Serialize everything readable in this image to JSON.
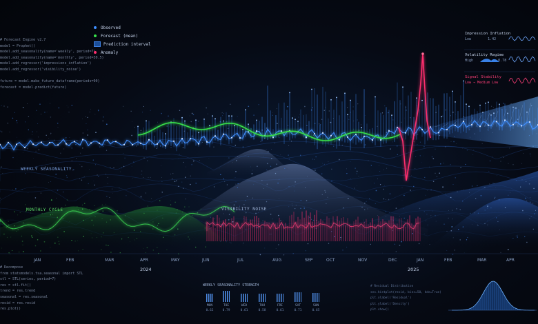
{
  "legend": {
    "observed": "Observed",
    "forecast": "Forecast (mean)",
    "interval": "Prediction interval",
    "anomaly": "Anomaly"
  },
  "colors": {
    "observed": "#3f8fff",
    "forecast": "#38e04a",
    "interval": "#1c4f9a",
    "anomaly": "#ff2f6e",
    "accent": "#6fb3ff"
  },
  "code_top": [
    "# Forecast Engine v2.7",
    "model = Prophet()",
    "model.add_seasonality(name='weekly', period=7)",
    "model.add_seasonality(name='monthly', period=30.5)",
    "model.add_regressor('impressions_inflation')",
    "model.add_regressor('visibility_noise')",
    "",
    "future = model.make_future_dataframe(periods=90)",
    "forecast = model.predict(future)"
  ],
  "code_bottom": [
    "# Decompose",
    "from statsmodels.tsa.seasonal import STL",
    "stl = STL(series, period=7)",
    "res = stl.fit()",
    "trend = res.trend",
    "seasonal = res.seasonal",
    "resid = res.resid",
    "res.plot()"
  ],
  "panels": [
    {
      "title": "Impression Inflation",
      "sub": "Low",
      "value": "1.42"
    },
    {
      "title": "Volatility Regime",
      "sub": "High",
      "value": "0.78"
    },
    {
      "title": "Signal Stability",
      "sub": "Low → Medium Low",
      "value": ""
    }
  ],
  "labels": {
    "weekly_seasonality": "WEEKLY SEASONALITY",
    "monthly_cycle": "MONTHLY CYCLE",
    "visibility_noise": "VISIBILITY NOISE"
  },
  "axis": {
    "months": [
      "JAN",
      "FEB",
      "MAR",
      "APR",
      "MAY",
      "JUN",
      "JUL",
      "AUG",
      "SEP",
      "OCT",
      "NOV",
      "DEC",
      "JAN",
      "FEB",
      "MAR",
      "APR"
    ],
    "years": [
      "2024",
      "2025"
    ]
  },
  "weekly_strength": {
    "title": "WEEKLY SEASONALITY STRENGTH",
    "days": [
      "MON",
      "TUE",
      "WED",
      "THU",
      "FRI",
      "SAT",
      "SUN"
    ],
    "values": [
      "0.62",
      "0.79",
      "0.61",
      "0.58",
      "0.61",
      "0.71",
      "0.65"
    ]
  },
  "residual_code": [
    "# Residual Distribution",
    "sns.histplot(resid, bins=50, kde=True)",
    "plt.xlabel('Residual')",
    "plt.ylabel('Density')",
    "plt.show()"
  ],
  "chart_data": {
    "type": "line",
    "x": [
      "Jan 2024",
      "Feb 2024",
      "Mar 2024",
      "Apr 2024",
      "May 2024",
      "Jun 2024",
      "Jul 2024",
      "Aug 2024",
      "Sep 2024",
      "Oct 2024",
      "Nov 2024",
      "Dec 2024",
      "Jan 2025",
      "Feb 2025",
      "Mar 2025",
      "Apr 2025"
    ],
    "series": [
      {
        "name": "Observed",
        "values": [
          0.2,
          0.22,
          0.24,
          0.27,
          0.3,
          0.33,
          0.36,
          0.42,
          0.4,
          0.38,
          0.36,
          0.05,
          0.38,
          0.4,
          0.41,
          0.42
        ]
      },
      {
        "name": "Forecast (mean)",
        "values": [
          null,
          null,
          null,
          0.28,
          0.3,
          0.33,
          0.36,
          0.42,
          0.38,
          0.34,
          null,
          null,
          null,
          null,
          null,
          null
        ]
      }
    ],
    "anomaly": {
      "x": "Dec 2024",
      "value": 1.0
    },
    "grid": false,
    "legend": "top-left"
  }
}
